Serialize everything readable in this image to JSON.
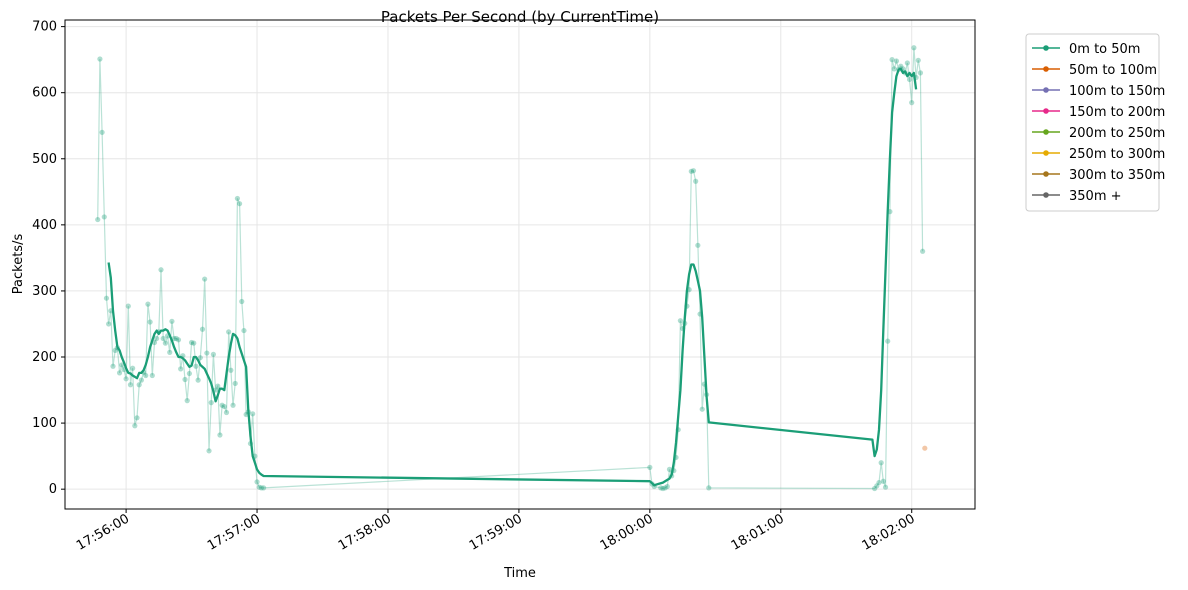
{
  "chart_data": {
    "type": "line",
    "title": "Packets Per Second (by CurrentTime)",
    "xlabel": "Time",
    "ylabel": "Packets/s",
    "ylim": [
      -30,
      710
    ],
    "xlim": [
      "17:55:32",
      "18:02:29"
    ],
    "y_ticks": [
      0,
      100,
      200,
      300,
      400,
      500,
      600,
      700
    ],
    "x_ticks": [
      "17:56:00",
      "17:57:00",
      "17:58:00",
      "17:59:00",
      "18:00:00",
      "18:01:00",
      "18:02:00"
    ],
    "grid": true,
    "legend_position": "outside upper-right",
    "legend": [
      {
        "name": "0m to 50m",
        "color": "#1b9e77"
      },
      {
        "name": "50m to 100m",
        "color": "#d95f02"
      },
      {
        "name": "100m to 150m",
        "color": "#7570b3"
      },
      {
        "name": "150m to 200m",
        "color": "#e7298a"
      },
      {
        "name": "200m to 250m",
        "color": "#66a61e"
      },
      {
        "name": "250m to 300m",
        "color": "#e6ab02"
      },
      {
        "name": "300m to 350m",
        "color": "#a6761d"
      },
      {
        "name": "350m +",
        "color": "#666666"
      }
    ],
    "series": [
      {
        "name": "0m to 50m",
        "color": "#1b9e77",
        "raw": [
          [
            "17:55:47",
            408
          ],
          [
            "17:55:48",
            651
          ],
          [
            "17:55:49",
            540
          ],
          [
            "17:55:50",
            412
          ],
          [
            "17:55:51",
            289
          ],
          [
            "17:55:52",
            250
          ],
          [
            "17:55:53",
            270
          ],
          [
            "17:55:54",
            186
          ],
          [
            "17:55:55",
            210
          ],
          [
            "17:55:56",
            214
          ],
          [
            "17:55:57",
            176
          ],
          [
            "17:55:58",
            188
          ],
          [
            "17:55:59",
            181
          ],
          [
            "17:56:00",
            167
          ],
          [
            "17:56:01",
            277
          ],
          [
            "17:56:02",
            158
          ],
          [
            "17:56:03",
            183
          ],
          [
            "17:56:04",
            96
          ],
          [
            "17:56:05",
            108
          ],
          [
            "17:56:06",
            158
          ],
          [
            "17:56:07",
            165
          ],
          [
            "17:56:08",
            177
          ],
          [
            "17:56:09",
            172
          ],
          [
            "17:56:10",
            280
          ],
          [
            "17:56:11",
            253
          ],
          [
            "17:56:12",
            172
          ],
          [
            "17:56:13",
            222
          ],
          [
            "17:56:14",
            228
          ],
          [
            "17:56:15",
            238
          ],
          [
            "17:56:16",
            332
          ],
          [
            "17:56:17",
            228
          ],
          [
            "17:56:18",
            221
          ],
          [
            "17:56:19",
            232
          ],
          [
            "17:56:20",
            207
          ],
          [
            "17:56:21",
            254
          ],
          [
            "17:56:22",
            228
          ],
          [
            "17:56:23",
            228
          ],
          [
            "17:56:24",
            226
          ],
          [
            "17:56:25",
            182
          ],
          [
            "17:56:26",
            202
          ],
          [
            "17:56:27",
            166
          ],
          [
            "17:56:28",
            134
          ],
          [
            "17:56:29",
            175
          ],
          [
            "17:56:30",
            222
          ],
          [
            "17:56:31",
            221
          ],
          [
            "17:56:32",
            186
          ],
          [
            "17:56:33",
            165
          ],
          [
            "17:56:34",
            199
          ],
          [
            "17:56:35",
            242
          ],
          [
            "17:56:36",
            318
          ],
          [
            "17:56:37",
            206
          ],
          [
            "17:56:38",
            58
          ],
          [
            "17:56:39",
            131
          ],
          [
            "17:56:40",
            204
          ],
          [
            "17:56:41",
            150
          ],
          [
            "17:56:42",
            156
          ],
          [
            "17:56:43",
            82
          ],
          [
            "17:56:44",
            127
          ],
          [
            "17:56:45",
            125
          ],
          [
            "17:56:46",
            116
          ],
          [
            "17:56:47",
            238
          ],
          [
            "17:56:48",
            180
          ],
          [
            "17:56:49",
            127
          ],
          [
            "17:56:50",
            160
          ],
          [
            "17:56:51",
            440
          ],
          [
            "17:56:52",
            432
          ],
          [
            "17:56:53",
            284
          ],
          [
            "17:56:54",
            240
          ],
          [
            "17:56:55",
            113
          ],
          [
            "17:56:56",
            117
          ],
          [
            "17:56:57",
            69
          ],
          [
            "17:56:58",
            114
          ],
          [
            "17:56:59",
            50
          ],
          [
            "17:57:00",
            11
          ],
          [
            "17:57:01",
            3
          ],
          [
            "17:57:02",
            2
          ],
          [
            "17:57:03",
            2
          ],
          [
            "18:00:00",
            33
          ],
          [
            "18:00:01",
            8
          ],
          [
            "18:00:02",
            4
          ],
          [
            "18:00:05",
            2
          ],
          [
            "18:00:06",
            1
          ],
          [
            "18:00:07",
            2
          ],
          [
            "18:00:08",
            4
          ],
          [
            "18:00:09",
            30
          ],
          [
            "18:00:10",
            20
          ],
          [
            "18:00:11",
            28
          ],
          [
            "18:00:12",
            48
          ],
          [
            "18:00:13",
            90
          ],
          [
            "18:00:14",
            255
          ],
          [
            "18:00:15",
            243
          ],
          [
            "18:00:16",
            251
          ],
          [
            "18:00:17",
            277
          ],
          [
            "18:00:18",
            302
          ],
          [
            "18:00:19",
            481
          ],
          [
            "18:00:20",
            482
          ],
          [
            "18:00:21",
            466
          ],
          [
            "18:00:22",
            369
          ],
          [
            "18:00:23",
            265
          ],
          [
            "18:00:24",
            121
          ],
          [
            "18:00:25",
            159
          ],
          [
            "18:00:26",
            143
          ],
          [
            "18:00:27",
            2
          ],
          [
            "18:01:43",
            1
          ],
          [
            "18:01:44",
            5
          ],
          [
            "18:01:45",
            10
          ],
          [
            "18:01:46",
            40
          ],
          [
            "18:01:47",
            12
          ],
          [
            "18:01:48",
            3
          ],
          [
            "18:01:49",
            224
          ],
          [
            "18:01:50",
            420
          ],
          [
            "18:01:51",
            650
          ],
          [
            "18:01:52",
            636
          ],
          [
            "18:01:53",
            648
          ],
          [
            "18:01:54",
            635
          ],
          [
            "18:01:55",
            640
          ],
          [
            "18:01:56",
            636
          ],
          [
            "18:01:57",
            630
          ],
          [
            "18:01:58",
            645
          ],
          [
            "18:01:59",
            620
          ],
          [
            "18:02:00",
            585
          ],
          [
            "18:02:01",
            668
          ],
          [
            "18:02:02",
            623
          ],
          [
            "18:02:03",
            649
          ],
          [
            "18:02:04",
            630
          ],
          [
            "18:02:05",
            360
          ]
        ],
        "smoothed": [
          [
            "17:55:52",
            343
          ],
          [
            "17:55:53",
            320
          ],
          [
            "17:55:54",
            270
          ],
          [
            "17:55:55",
            240
          ],
          [
            "17:55:56",
            215
          ],
          [
            "17:55:57",
            210
          ],
          [
            "17:55:58",
            200
          ],
          [
            "17:55:59",
            192
          ],
          [
            "17:56:00",
            183
          ],
          [
            "17:56:01",
            176
          ],
          [
            "17:56:02",
            175
          ],
          [
            "17:56:03",
            172
          ],
          [
            "17:56:04",
            170
          ],
          [
            "17:56:05",
            168
          ],
          [
            "17:56:06",
            176
          ],
          [
            "17:56:07",
            176
          ],
          [
            "17:56:08",
            180
          ],
          [
            "17:56:09",
            188
          ],
          [
            "17:56:10",
            200
          ],
          [
            "17:56:11",
            215
          ],
          [
            "17:56:12",
            225
          ],
          [
            "17:56:13",
            235
          ],
          [
            "17:56:14",
            240
          ],
          [
            "17:56:15",
            235
          ],
          [
            "17:56:16",
            240
          ],
          [
            "17:56:17",
            240
          ],
          [
            "17:56:18",
            242
          ],
          [
            "17:56:19",
            240
          ],
          [
            "17:56:20",
            233
          ],
          [
            "17:56:21",
            225
          ],
          [
            "17:56:22",
            215
          ],
          [
            "17:56:23",
            207
          ],
          [
            "17:56:24",
            200
          ],
          [
            "17:56:25",
            200
          ],
          [
            "17:56:26",
            198
          ],
          [
            "17:56:27",
            195
          ],
          [
            "17:56:28",
            190
          ],
          [
            "17:56:29",
            185
          ],
          [
            "17:56:30",
            187
          ],
          [
            "17:56:31",
            200
          ],
          [
            "17:56:32",
            200
          ],
          [
            "17:56:33",
            195
          ],
          [
            "17:56:34",
            188
          ],
          [
            "17:56:35",
            185
          ],
          [
            "17:56:36",
            182
          ],
          [
            "17:56:37",
            175
          ],
          [
            "17:56:38",
            168
          ],
          [
            "17:56:39",
            160
          ],
          [
            "17:56:40",
            148
          ],
          [
            "17:56:41",
            133
          ],
          [
            "17:56:42",
            142
          ],
          [
            "17:56:43",
            152
          ],
          [
            "17:56:44",
            152
          ],
          [
            "17:56:45",
            150
          ],
          [
            "17:56:46",
            175
          ],
          [
            "17:56:47",
            200
          ],
          [
            "17:56:48",
            220
          ],
          [
            "17:56:49",
            235
          ],
          [
            "17:56:50",
            233
          ],
          [
            "17:56:51",
            228
          ],
          [
            "17:56:52",
            215
          ],
          [
            "17:56:53",
            205
          ],
          [
            "17:56:54",
            195
          ],
          [
            "17:56:55",
            185
          ],
          [
            "17:56:56",
            120
          ],
          [
            "17:56:57",
            80
          ],
          [
            "17:56:58",
            50
          ],
          [
            "17:56:59",
            40
          ],
          [
            "17:57:00",
            30
          ],
          [
            "17:57:01",
            25
          ],
          [
            "17:57:02",
            22
          ],
          [
            "17:57:03",
            20
          ],
          [
            "18:00:00",
            12
          ],
          [
            "18:00:02",
            6
          ],
          [
            "18:00:04",
            8
          ],
          [
            "18:00:06",
            10
          ],
          [
            "18:00:08",
            14
          ],
          [
            "18:00:09",
            16
          ],
          [
            "18:00:10",
            22
          ],
          [
            "18:00:11",
            40
          ],
          [
            "18:00:12",
            70
          ],
          [
            "18:00:13",
            110
          ],
          [
            "18:00:14",
            150
          ],
          [
            "18:00:15",
            210
          ],
          [
            "18:00:16",
            260
          ],
          [
            "18:00:17",
            300
          ],
          [
            "18:00:18",
            325
          ],
          [
            "18:00:19",
            340
          ],
          [
            "18:00:20",
            340
          ],
          [
            "18:00:21",
            330
          ],
          [
            "18:00:22",
            315
          ],
          [
            "18:00:23",
            300
          ],
          [
            "18:00:24",
            260
          ],
          [
            "18:00:25",
            200
          ],
          [
            "18:00:26",
            140
          ],
          [
            "18:00:27",
            101
          ],
          [
            "18:01:42",
            75
          ],
          [
            "18:01:43",
            50
          ],
          [
            "18:01:44",
            60
          ],
          [
            "18:01:45",
            90
          ],
          [
            "18:01:46",
            150
          ],
          [
            "18:01:47",
            240
          ],
          [
            "18:01:48",
            330
          ],
          [
            "18:01:49",
            420
          ],
          [
            "18:01:50",
            500
          ],
          [
            "18:01:51",
            570
          ],
          [
            "18:01:52",
            600
          ],
          [
            "18:01:53",
            625
          ],
          [
            "18:01:54",
            635
          ],
          [
            "18:01:55",
            636
          ],
          [
            "18:01:56",
            630
          ],
          [
            "18:01:57",
            632
          ],
          [
            "18:01:58",
            625
          ],
          [
            "18:01:59",
            630
          ],
          [
            "18:02:00",
            625
          ],
          [
            "18:02:01",
            630
          ],
          [
            "18:02:02",
            605
          ]
        ]
      },
      {
        "name": "50m to 100m",
        "color": "#d95f02",
        "raw": [
          [
            "18:02:06",
            62
          ]
        ],
        "smoothed": []
      }
    ]
  }
}
